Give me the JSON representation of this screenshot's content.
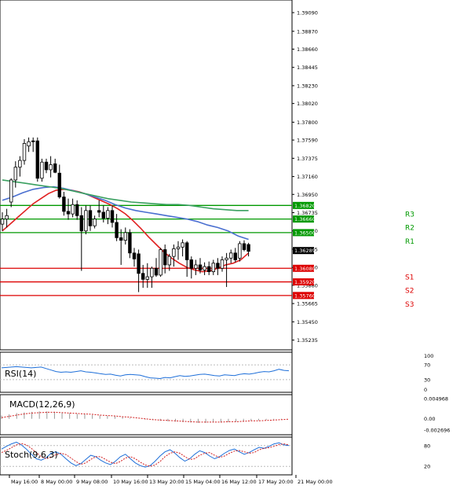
{
  "chart_data": [
    {
      "type": "candlestick",
      "price_ticks": [
        "1.39090",
        "1.38870",
        "1.38660",
        "1.38445",
        "1.38230",
        "1.38020",
        "1.37800",
        "1.37590",
        "1.37375",
        "1.37160",
        "1.36950",
        "1.36735",
        "1.36520",
        "1.36305",
        "1.36090",
        "1.35880",
        "1.35665",
        "1.35450",
        "1.35235"
      ],
      "ylim": [
        1.3512,
        1.3922
      ],
      "x_labels": [
        "May 16:00",
        "8 May 00:00",
        "9 May 08:00",
        "10 May 16:00",
        "13 May 20:00",
        "15 May 04:00",
        "16 May 12:00",
        "17 May 20:00",
        "21 May 00:00"
      ],
      "candles": [
        {
          "o": 1.366,
          "h": 1.3674,
          "l": 1.3652,
          "c": 1.3666
        },
        {
          "o": 1.3666,
          "h": 1.3678,
          "l": 1.3656,
          "c": 1.367
        },
        {
          "o": 1.3686,
          "h": 1.3714,
          "l": 1.368,
          "c": 1.3712
        },
        {
          "o": 1.3712,
          "h": 1.3734,
          "l": 1.3703,
          "c": 1.3727
        },
        {
          "o": 1.3727,
          "h": 1.374,
          "l": 1.3716,
          "c": 1.3735
        },
        {
          "o": 1.3735,
          "h": 1.376,
          "l": 1.373,
          "c": 1.3755
        },
        {
          "o": 1.3752,
          "h": 1.3762,
          "l": 1.3745,
          "c": 1.3757
        },
        {
          "o": 1.3758,
          "h": 1.3762,
          "l": 1.3745,
          "c": 1.3757
        },
        {
          "o": 1.3758,
          "h": 1.3762,
          "l": 1.371,
          "c": 1.3714
        },
        {
          "o": 1.3714,
          "h": 1.3737,
          "l": 1.371,
          "c": 1.3733
        },
        {
          "o": 1.3733,
          "h": 1.3737,
          "l": 1.372,
          "c": 1.3724
        },
        {
          "o": 1.3724,
          "h": 1.374,
          "l": 1.3715,
          "c": 1.373
        },
        {
          "o": 1.3731,
          "h": 1.3737,
          "l": 1.372,
          "c": 1.3721
        },
        {
          "o": 1.372,
          "h": 1.373,
          "l": 1.369,
          "c": 1.3692
        },
        {
          "o": 1.3692,
          "h": 1.3698,
          "l": 1.367,
          "c": 1.3675
        },
        {
          "o": 1.3675,
          "h": 1.369,
          "l": 1.3665,
          "c": 1.3672
        },
        {
          "o": 1.3672,
          "h": 1.369,
          "l": 1.3668,
          "c": 1.3683
        },
        {
          "o": 1.3683,
          "h": 1.3688,
          "l": 1.3665,
          "c": 1.367
        },
        {
          "o": 1.367,
          "h": 1.368,
          "l": 1.3605,
          "c": 1.3652
        },
        {
          "o": 1.3652,
          "h": 1.3682,
          "l": 1.3648,
          "c": 1.3676
        },
        {
          "o": 1.3676,
          "h": 1.3682,
          "l": 1.3652,
          "c": 1.3658
        },
        {
          "o": 1.3658,
          "h": 1.367,
          "l": 1.3655,
          "c": 1.3666
        },
        {
          "o": 1.3676,
          "h": 1.3688,
          "l": 1.3668,
          "c": 1.3674
        },
        {
          "o": 1.3674,
          "h": 1.3682,
          "l": 1.3662,
          "c": 1.3667
        },
        {
          "o": 1.3667,
          "h": 1.368,
          "l": 1.366,
          "c": 1.3676
        },
        {
          "o": 1.3676,
          "h": 1.3682,
          "l": 1.3656,
          "c": 1.3662
        },
        {
          "o": 1.3662,
          "h": 1.3672,
          "l": 1.364,
          "c": 1.3644
        },
        {
          "o": 1.3644,
          "h": 1.3654,
          "l": 1.3612,
          "c": 1.3641
        },
        {
          "o": 1.3641,
          "h": 1.3656,
          "l": 1.3636,
          "c": 1.365
        },
        {
          "o": 1.365,
          "h": 1.3654,
          "l": 1.362,
          "c": 1.3626
        },
        {
          "o": 1.3626,
          "h": 1.3632,
          "l": 1.361,
          "c": 1.3619
        },
        {
          "o": 1.3625,
          "h": 1.363,
          "l": 1.358,
          "c": 1.3602
        },
        {
          "o": 1.3602,
          "h": 1.3612,
          "l": 1.3585,
          "c": 1.3595
        },
        {
          "o": 1.3595,
          "h": 1.3614,
          "l": 1.3585,
          "c": 1.3598
        },
        {
          "o": 1.3598,
          "h": 1.361,
          "l": 1.3585,
          "c": 1.3608
        },
        {
          "o": 1.3608,
          "h": 1.362,
          "l": 1.3598,
          "c": 1.36
        },
        {
          "o": 1.36,
          "h": 1.3632,
          "l": 1.3598,
          "c": 1.363
        },
        {
          "o": 1.363,
          "h": 1.3636,
          "l": 1.3602,
          "c": 1.3612
        },
        {
          "o": 1.3612,
          "h": 1.3625,
          "l": 1.3605,
          "c": 1.3622
        },
        {
          "o": 1.3622,
          "h": 1.3636,
          "l": 1.361,
          "c": 1.3631
        },
        {
          "o": 1.3631,
          "h": 1.364,
          "l": 1.3618,
          "c": 1.3633
        },
        {
          "o": 1.3633,
          "h": 1.3642,
          "l": 1.3622,
          "c": 1.3638
        },
        {
          "o": 1.3638,
          "h": 1.364,
          "l": 1.3598,
          "c": 1.3618
        },
        {
          "o": 1.3618,
          "h": 1.3622,
          "l": 1.3596,
          "c": 1.3608
        },
        {
          "o": 1.3608,
          "h": 1.3618,
          "l": 1.36,
          "c": 1.3612
        },
        {
          "o": 1.3612,
          "h": 1.362,
          "l": 1.3602,
          "c": 1.3606
        },
        {
          "o": 1.3606,
          "h": 1.3615,
          "l": 1.36,
          "c": 1.361
        },
        {
          "o": 1.361,
          "h": 1.3616,
          "l": 1.36,
          "c": 1.3604
        },
        {
          "o": 1.3604,
          "h": 1.3618,
          "l": 1.36,
          "c": 1.3614
        },
        {
          "o": 1.3614,
          "h": 1.362,
          "l": 1.36,
          "c": 1.3608
        },
        {
          "o": 1.3608,
          "h": 1.3622,
          "l": 1.3604,
          "c": 1.3618
        },
        {
          "o": 1.3618,
          "h": 1.3626,
          "l": 1.3586,
          "c": 1.362
        },
        {
          "o": 1.362,
          "h": 1.363,
          "l": 1.3614,
          "c": 1.3626
        },
        {
          "o": 1.3626,
          "h": 1.3632,
          "l": 1.3615,
          "c": 1.3618
        },
        {
          "o": 1.362,
          "h": 1.364,
          "l": 1.3616,
          "c": 1.3637
        },
        {
          "o": 1.3637,
          "h": 1.3641,
          "l": 1.3628,
          "c": 1.363
        },
        {
          "o": 1.3636,
          "h": 1.3638,
          "l": 1.3622,
          "c": 1.3628
        }
      ],
      "moving_averages": [
        {
          "color": "#e02020",
          "values": [
            1.3652,
            1.366,
            1.3668,
            1.3676,
            1.3684,
            1.369,
            1.3696,
            1.37,
            1.3701,
            1.37,
            1.3698,
            1.3695,
            1.3691,
            1.3687,
            1.3683,
            1.3678,
            1.3672,
            1.3664,
            1.3655,
            1.3645,
            1.3636,
            1.3627,
            1.362,
            1.3614,
            1.3609,
            1.3606,
            1.3604,
            1.3605,
            1.3608,
            1.3612,
            1.3614,
            1.3618,
            1.3626
          ]
        },
        {
          "color": "#4a6fd0",
          "values": [
            1.3688,
            1.3692,
            1.3697,
            1.3701,
            1.3703,
            1.3704,
            1.3702,
            1.3699,
            1.3696,
            1.3692,
            1.3688,
            1.3683,
            1.3679,
            1.3676,
            1.3674,
            1.3672,
            1.367,
            1.3668,
            1.3666,
            1.3663,
            1.3659,
            1.3656,
            1.3652,
            1.3646,
            1.3642
          ]
        },
        {
          "color": "#3aa060",
          "values": [
            1.3712,
            1.371,
            1.3708,
            1.3706,
            1.3704,
            1.3702,
            1.3699,
            1.3696,
            1.3693,
            1.369,
            1.3688,
            1.3686,
            1.3685,
            1.3684,
            1.3683,
            1.3683,
            1.3682,
            1.368,
            1.3678,
            1.3677,
            1.3676,
            1.3676
          ]
        }
      ],
      "levels": [
        {
          "name": "R3",
          "value": 1.3682,
          "tag": "1.36820",
          "color": "#009900"
        },
        {
          "name": "R2",
          "value": 1.3666,
          "tag": "1.36660",
          "color": "#009900"
        },
        {
          "name": "R1",
          "value": 1.365,
          "tag": "1.36500",
          "color": "#009900"
        },
        {
          "name": "S1",
          "value": 1.3608,
          "tag": "1.36080",
          "color": "#dd0000"
        },
        {
          "name": "S2",
          "value": 1.3592,
          "tag": "1.35920",
          "color": "#dd0000"
        },
        {
          "name": "S3",
          "value": 1.3576,
          "tag": "1.35760",
          "color": "#dd0000"
        }
      ],
      "current_price": "1.36289"
    },
    {
      "type": "line",
      "title": "RSI(14)",
      "ticks": [
        "70",
        "30"
      ],
      "ylim": [
        0,
        100
      ],
      "values": [
        62,
        63,
        64,
        65,
        64,
        63,
        62,
        63,
        64,
        60,
        56,
        52,
        50,
        51,
        50,
        52,
        54,
        51,
        50,
        48,
        46,
        44,
        45,
        42,
        40,
        43,
        44,
        43,
        42,
        38,
        35,
        34,
        33,
        36,
        35,
        38,
        41,
        39,
        40,
        42,
        44,
        45,
        43,
        41,
        40,
        43,
        42,
        41,
        44,
        46,
        45,
        47,
        50,
        52,
        51,
        54,
        58,
        55,
        54
      ]
    },
    {
      "type": "histogram",
      "title": "MACD(12,26,9)",
      "ticks": [
        "0.004968",
        "0.00",
        "-0.002696"
      ],
      "ylim": [
        -0.0035,
        0.0055
      ],
      "values": [
        0.0008,
        0.0011,
        0.0014,
        0.0016,
        0.0017,
        0.0018,
        0.0018,
        0.0017,
        0.0016,
        0.0014,
        0.0012,
        0.0011,
        0.0009,
        0.0008,
        0.0007,
        0.0006,
        0.0004,
        0.0002,
        0.0,
        -0.0002,
        -0.0003,
        -0.0005,
        -0.0006,
        -0.0007,
        -0.0008,
        -0.0009,
        -0.001,
        -0.001,
        -0.0009,
        -0.0009,
        -0.0008,
        -0.0007,
        -0.0006,
        -0.0005,
        -0.0004,
        -0.0003,
        -0.0002,
        -0.0001,
        0.0
      ],
      "signal": [
        0.0003,
        0.0006,
        0.0009,
        0.0012,
        0.0014,
        0.0015,
        0.0016,
        0.0016,
        0.0015,
        0.0014,
        0.0013,
        0.0012,
        0.0011,
        0.0009,
        0.0008,
        0.0007,
        0.0005,
        0.0004,
        0.0002,
        0.0,
        -0.0002,
        -0.0003,
        -0.0004,
        -0.0005,
        -0.0006,
        -0.0007,
        -0.0008,
        -0.0008,
        -0.0008,
        -0.0008,
        -0.0007,
        -0.0007,
        -0.0006,
        -0.0005,
        -0.0005,
        -0.0004,
        -0.0003,
        -0.0002,
        -0.0001
      ]
    },
    {
      "type": "line",
      "title": "Stoch(9,6,3)",
      "ticks": [
        "80",
        "20"
      ],
      "ylim": [
        0,
        100
      ],
      "main": [
        70,
        78,
        85,
        90,
        82,
        70,
        55,
        42,
        38,
        45,
        58,
        62,
        55,
        42,
        30,
        22,
        28,
        40,
        52,
        48,
        38,
        30,
        25,
        35,
        48,
        55,
        42,
        30,
        22,
        18,
        22,
        35,
        50,
        62,
        68,
        58,
        45,
        35,
        42,
        55,
        65,
        60,
        50,
        42,
        48,
        58,
        66,
        70,
        62,
        55,
        60,
        68,
        75,
        72,
        78,
        85,
        88,
        82,
        80
      ],
      "signal": [
        60,
        66,
        74,
        82,
        86,
        82,
        72,
        60,
        48,
        42,
        46,
        54,
        58,
        54,
        44,
        34,
        26,
        30,
        40,
        48,
        48,
        40,
        32,
        28,
        34,
        44,
        48,
        42,
        32,
        24,
        20,
        24,
        34,
        48,
        58,
        62,
        58,
        48,
        40,
        42,
        52,
        58,
        60,
        52,
        46,
        50,
        58,
        64,
        66,
        62,
        58,
        60,
        68,
        72,
        74,
        78,
        83,
        85,
        82
      ]
    }
  ]
}
